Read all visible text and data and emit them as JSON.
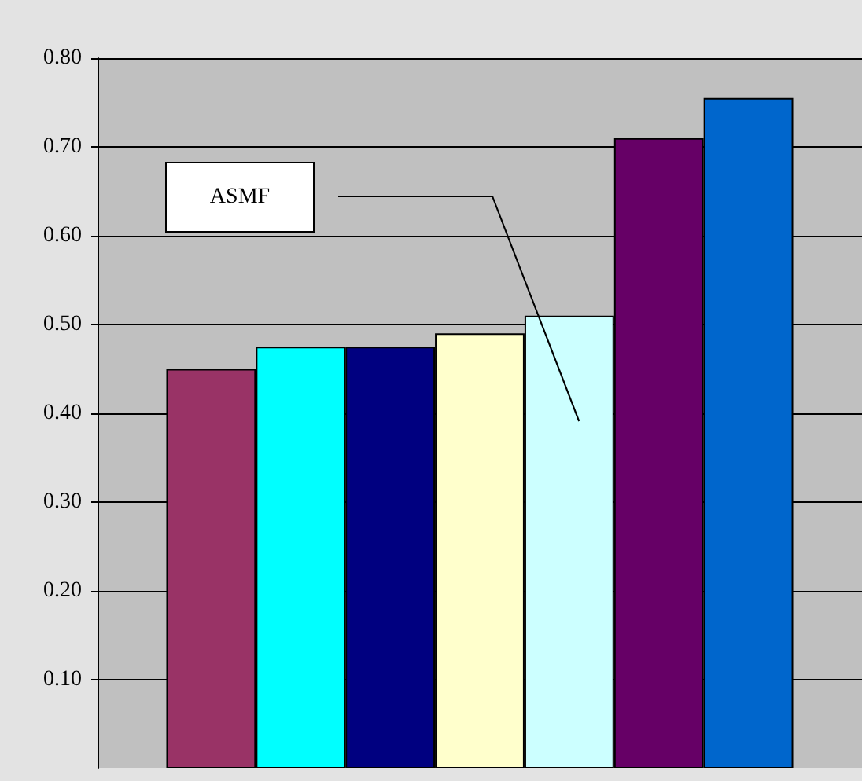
{
  "chart_data": {
    "type": "bar",
    "categories": [
      null
    ],
    "series": [
      {
        "color": "#993366",
        "values": [
          0.45
        ]
      },
      {
        "color": "#00ffff",
        "values": [
          0.475
        ]
      },
      {
        "color": "#000080",
        "values": [
          0.475
        ]
      },
      {
        "color": "#ffffcc",
        "values": [
          0.49
        ]
      },
      {
        "color": "#ccffff",
        "values": [
          0.51
        ]
      },
      {
        "color": "#660066",
        "values": [
          0.71
        ]
      },
      {
        "color": "#0066cc",
        "values": [
          0.755
        ]
      }
    ],
    "ylim": [
      0,
      0.8
    ],
    "yticks": [
      {
        "value": 0.1,
        "label": "0.10"
      },
      {
        "value": 0.2,
        "label": "0.20"
      },
      {
        "value": 0.3,
        "label": "0.30"
      },
      {
        "value": 0.4,
        "label": "0.40"
      },
      {
        "value": 0.5,
        "label": "0.50"
      },
      {
        "value": 0.6,
        "label": "0.60"
      },
      {
        "value": 0.7,
        "label": "0.70"
      },
      {
        "value": 0.8,
        "label": "0.80"
      }
    ],
    "grid": "y",
    "annotations": [
      "ASMF"
    ]
  }
}
